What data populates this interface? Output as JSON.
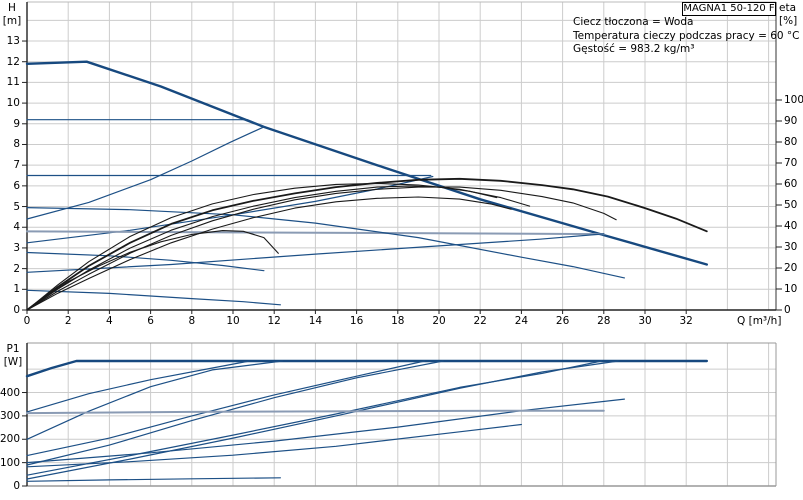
{
  "title_box": "MAGNA1 50-120 F",
  "info_lines": [
    "Ciecz tłoczona = Woda",
    "Temperatura cieczy podczas pracy = 60 °C",
    "Gęstość = 983.2 kg/m³"
  ],
  "labels": {
    "h": "H",
    "m": "[m]",
    "eta": "eta",
    "pct": "[%]",
    "q": "Q [m³/h]",
    "p1": "P1",
    "w": "[W]"
  },
  "colors": {
    "curve_blue": "#1d5086",
    "curve_blue_thick": "#17497f",
    "curve_muted": "#8a9bb4",
    "curve_black": "#1a1a1a",
    "grid": "#cccccc",
    "frame_light": "#bbbbbb",
    "frame_grey": "#999999",
    "axis": "#222222"
  },
  "chart_data": [
    {
      "id": "qh",
      "type": "line",
      "title": "MAGNA1 50-120 F",
      "xlabel": "Q [m³/h]",
      "ylabel": "H [m]",
      "y2label": "eta [%]",
      "xlim": [
        0,
        36.4
      ],
      "ylim_left": [
        0,
        14.9
      ],
      "ylim_right": [
        0,
        146
      ],
      "grid": true,
      "legend_position": "none",
      "x_ticks": [
        0,
        2,
        4,
        6,
        8,
        10,
        12,
        14,
        16,
        18,
        20,
        22,
        24,
        26,
        28,
        30,
        32
      ],
      "y_ticks_left": [
        0,
        1,
        2,
        3,
        4,
        5,
        6,
        7,
        8,
        9,
        10,
        11,
        12,
        13
      ],
      "y_ticks_right": [
        0,
        10,
        20,
        30,
        40,
        50,
        60,
        70,
        80,
        90,
        100
      ],
      "x_gridlines": [
        2,
        4,
        6,
        8,
        10,
        12,
        14,
        16,
        18,
        20,
        22,
        24,
        26,
        28,
        30,
        32,
        34,
        36
      ],
      "y_gridlines": [
        1,
        2,
        3,
        4,
        5,
        6,
        7,
        8,
        9,
        10,
        11,
        12,
        13,
        14
      ],
      "series": [
        {
          "name": "max-speed-curve",
          "axis": "left",
          "style": "thick",
          "points": [
            [
              0,
              11.9
            ],
            [
              2.9,
              12
            ],
            [
              6.5,
              10.8
            ],
            [
              11.5,
              8.85
            ],
            [
              17,
              7.0
            ],
            [
              22,
              5.35
            ],
            [
              28,
              3.62
            ],
            [
              33,
              2.2
            ]
          ]
        },
        {
          "name": "const-pressure-curve-9.2",
          "axis": "left",
          "style": "normal",
          "points": [
            [
              0,
              9.2
            ],
            [
              10.7,
              9.2
            ],
            [
              11.5,
              8.87
            ]
          ]
        },
        {
          "name": "prop-pressure-curve-9.2",
          "axis": "left",
          "style": "normal",
          "points": [
            [
              0,
              4.4
            ],
            [
              3,
              5.2
            ],
            [
              6,
              6.3
            ],
            [
              8,
              7.2
            ],
            [
              9.85,
              8.1
            ],
            [
              11.5,
              8.85
            ]
          ]
        },
        {
          "name": "const-pressure-curve-6.5",
          "axis": "left",
          "style": "normal",
          "points": [
            [
              0,
              6.5
            ],
            [
              19.6,
              6.5
            ]
          ]
        },
        {
          "name": "prop-pressure-curve-6.5",
          "axis": "left",
          "style": "normal",
          "points": [
            [
              0,
              3.25
            ],
            [
              5,
              3.85
            ],
            [
              10,
              4.6
            ],
            [
              14,
              5.25
            ],
            [
              17,
              5.85
            ],
            [
              19.7,
              6.45
            ]
          ]
        },
        {
          "name": "const-pressure-curve-3.7-muted",
          "axis": "left",
          "style": "muted",
          "points": [
            [
              0,
              3.8
            ],
            [
              28,
              3.67
            ]
          ]
        },
        {
          "name": "prop-pressure-curve-3.7",
          "axis": "left",
          "style": "normal",
          "points": [
            [
              0,
              1.82
            ],
            [
              7,
              2.2
            ],
            [
              14,
              2.7
            ],
            [
              20,
              3.1
            ],
            [
              24.9,
              3.42
            ],
            [
              28,
              3.68
            ]
          ]
        },
        {
          "name": "speed-2-curve",
          "axis": "left",
          "style": "normal",
          "points": [
            [
              0,
              4.95
            ],
            [
              5,
              4.85
            ],
            [
              10,
              4.6
            ],
            [
              14,
              4.2
            ],
            [
              19,
              3.5
            ],
            [
              24,
              2.55
            ],
            [
              26.5,
              2.1
            ],
            [
              29,
              1.55
            ]
          ]
        },
        {
          "name": "speed-1-curve",
          "axis": "left",
          "style": "normal",
          "points": [
            [
              0,
              2.78
            ],
            [
              4,
              2.62
            ],
            [
              7,
              2.4
            ],
            [
              9.5,
              2.15
            ],
            [
              11.5,
              1.9
            ]
          ]
        },
        {
          "name": "min-speed-curve",
          "axis": "left",
          "style": "normal",
          "points": [
            [
              0,
              0.95
            ],
            [
              4,
              0.8
            ],
            [
              8,
              0.55
            ],
            [
              10.5,
              0.4
            ],
            [
              12.3,
              0.25
            ]
          ]
        },
        {
          "name": "eta-curve-max",
          "axis": "right",
          "style": "black_main",
          "points": [
            [
              0,
              0
            ],
            [
              1.5,
              11
            ],
            [
              3,
              21
            ],
            [
              5,
              32
            ],
            [
              7,
              41
            ],
            [
              9,
              47.5
            ],
            [
              11,
              52
            ],
            [
              13,
              55.5
            ],
            [
              15,
              58.5
            ],
            [
              17,
              60.5
            ],
            [
              19,
              62
            ],
            [
              21,
              62.5
            ],
            [
              23,
              61.5
            ],
            [
              25,
              59.5
            ],
            [
              26.5,
              57.5
            ],
            [
              28.2,
              54
            ],
            [
              30,
              48.5
            ],
            [
              31.5,
              43.5
            ],
            [
              33,
              37.5
            ]
          ]
        },
        {
          "name": "eta-curve-2",
          "axis": "right",
          "style": "black",
          "points": [
            [
              0,
              0
            ],
            [
              1.5,
              9
            ],
            [
              3,
              17
            ],
            [
              5,
              27
            ],
            [
              7,
              35.5
            ],
            [
              9,
              42.5
            ],
            [
              11,
              48
            ],
            [
              13,
              52.5
            ],
            [
              15,
              55.5
            ],
            [
              17,
              57.5
            ],
            [
              19,
              58.5
            ],
            [
              21,
              58.5
            ],
            [
              23,
              57
            ],
            [
              25,
              54
            ],
            [
              26.5,
              51
            ],
            [
              28,
              46
            ],
            [
              28.6,
              43
            ]
          ]
        },
        {
          "name": "eta-curve-3",
          "axis": "right",
          "style": "black",
          "points": [
            [
              0,
              0
            ],
            [
              1.5,
              12
            ],
            [
              3,
              23
            ],
            [
              5,
              35
            ],
            [
              7,
              44
            ],
            [
              9,
              50.5
            ],
            [
              11,
              55
            ],
            [
              13,
              58
            ],
            [
              15,
              59.8
            ],
            [
              17,
              60.3
            ],
            [
              19,
              59.5
            ],
            [
              21,
              57.5
            ],
            [
              23,
              53.5
            ],
            [
              24.4,
              49.5
            ]
          ]
        },
        {
          "name": "eta-curve-4",
          "axis": "right",
          "style": "black",
          "points": [
            [
              0,
              0
            ],
            [
              1.5,
              8
            ],
            [
              3,
              15
            ],
            [
              5,
              24
            ],
            [
              7,
              32
            ],
            [
              9,
              38.5
            ],
            [
              11,
              44
            ],
            [
              13,
              48.5
            ],
            [
              15,
              51.5
            ],
            [
              17,
              53.2
            ],
            [
              19,
              53.8
            ],
            [
              21,
              52.8
            ],
            [
              22.5,
              50.5
            ],
            [
              23.5,
              48
            ]
          ]
        },
        {
          "name": "eta-curve-5",
          "axis": "right",
          "style": "black",
          "points": [
            [
              0,
              0
            ],
            [
              1,
              7
            ],
            [
              2,
              13.5
            ],
            [
              3.5,
              21
            ],
            [
              5,
              27.5
            ],
            [
              6.5,
              32.5
            ],
            [
              8,
              36
            ],
            [
              9.5,
              37.8
            ],
            [
              10.5,
              37.5
            ],
            [
              11.5,
              34.5
            ],
            [
              12.2,
              27
            ]
          ]
        },
        {
          "name": "eta-curve-6",
          "axis": "right",
          "style": "black",
          "points": [
            [
              0,
              0
            ],
            [
              1.5,
              10
            ],
            [
              3,
              19
            ],
            [
              5,
              29.5
            ],
            [
              7,
              38
            ],
            [
              9,
              44.5
            ],
            [
              11,
              49.5
            ],
            [
              13,
              53.5
            ],
            [
              15,
              56.5
            ],
            [
              17,
              58.5
            ],
            [
              18.5,
              59
            ],
            [
              20,
              58.5
            ],
            [
              21.5,
              56.5
            ],
            [
              22.8,
              53.5
            ]
          ]
        }
      ]
    },
    {
      "id": "power",
      "type": "line",
      "title": "",
      "xlabel": "",
      "ylabel": "P1 [W]",
      "xlim": [
        0,
        36.4
      ],
      "ylim_left": [
        0,
        612
      ],
      "grid": true,
      "legend_position": "none",
      "x_ticks": [],
      "y_ticks_left": [
        0,
        100,
        200,
        300,
        400
      ],
      "x_gridlines": [
        2,
        4,
        6,
        8,
        10,
        12,
        14,
        16,
        18,
        20,
        22,
        24,
        26,
        28,
        30,
        32,
        34,
        36
      ],
      "y_gridlines": [
        100,
        200,
        300,
        400,
        500
      ],
      "series": [
        {
          "name": "power-max-speed",
          "axis": "left",
          "style": "thick",
          "points": [
            [
              0,
              470
            ],
            [
              1.2,
              505
            ],
            [
              2.4,
              535
            ],
            [
              33,
              535
            ]
          ]
        },
        {
          "name": "power-const-pressure-9.2",
          "axis": "left",
          "style": "normal",
          "points": [
            [
              0,
              317
            ],
            [
              3,
              395
            ],
            [
              6,
              455
            ],
            [
              9,
              505
            ],
            [
              10.8,
              535
            ]
          ]
        },
        {
          "name": "power-prop-pressure-9.2",
          "axis": "left",
          "style": "normal",
          "points": [
            [
              0,
              200
            ],
            [
              3,
              320
            ],
            [
              6,
              425
            ],
            [
              9,
              497
            ],
            [
              12.4,
              535
            ]
          ]
        },
        {
          "name": "power-const-pressure-6.5",
          "axis": "left",
          "style": "normal",
          "points": [
            [
              0,
              130
            ],
            [
              4,
              205
            ],
            [
              8,
              300
            ],
            [
              12,
              390
            ],
            [
              16,
              470
            ],
            [
              19.3,
              535
            ]
          ]
        },
        {
          "name": "power-prop-pressure-6.5",
          "axis": "left",
          "style": "normal",
          "points": [
            [
              0,
              90
            ],
            [
              4,
              175
            ],
            [
              8,
              280
            ],
            [
              12,
              378
            ],
            [
              16,
              463
            ],
            [
              20.2,
              535
            ]
          ]
        },
        {
          "name": "power-const-pressure-3.7",
          "axis": "left",
          "style": "normal",
          "points": [
            [
              0,
              46
            ],
            [
              5,
              130
            ],
            [
              10,
              218
            ],
            [
              15,
              308
            ],
            [
              21,
              422
            ],
            [
              25,
              482
            ],
            [
              27.9,
              535
            ]
          ]
        },
        {
          "name": "power-prop-pressure-3.7",
          "axis": "left",
          "style": "normal",
          "points": [
            [
              0,
              30
            ],
            [
              5,
              115
            ],
            [
              10,
              205
            ],
            [
              15,
              300
            ],
            [
              21,
              418
            ],
            [
              25,
              488
            ],
            [
              28.7,
              535
            ]
          ]
        },
        {
          "name": "power-speed-2",
          "axis": "left",
          "style": "normal",
          "points": [
            [
              0,
              100
            ],
            [
              6,
              142
            ],
            [
              12,
              192
            ],
            [
              18,
              252
            ],
            [
              24,
              322
            ],
            [
              29,
              372
            ]
          ]
        },
        {
          "name": "power-speed-2-setting-muted",
          "axis": "left",
          "style": "muted",
          "points": [
            [
              0,
              312
            ],
            [
              8,
              317
            ],
            [
              16,
              320
            ],
            [
              24,
              322
            ],
            [
              28,
              322
            ]
          ]
        },
        {
          "name": "power-speed-1",
          "axis": "left",
          "style": "normal",
          "points": [
            [
              0,
              82
            ],
            [
              5,
              104
            ],
            [
              10,
              132
            ],
            [
              15,
              170
            ],
            [
              21,
              232
            ],
            [
              24,
              263
            ]
          ]
        },
        {
          "name": "power-min-speed",
          "axis": "left",
          "style": "normal",
          "points": [
            [
              0,
              20
            ],
            [
              4,
              26
            ],
            [
              8,
              31
            ],
            [
              12.3,
              35
            ]
          ]
        }
      ]
    }
  ]
}
